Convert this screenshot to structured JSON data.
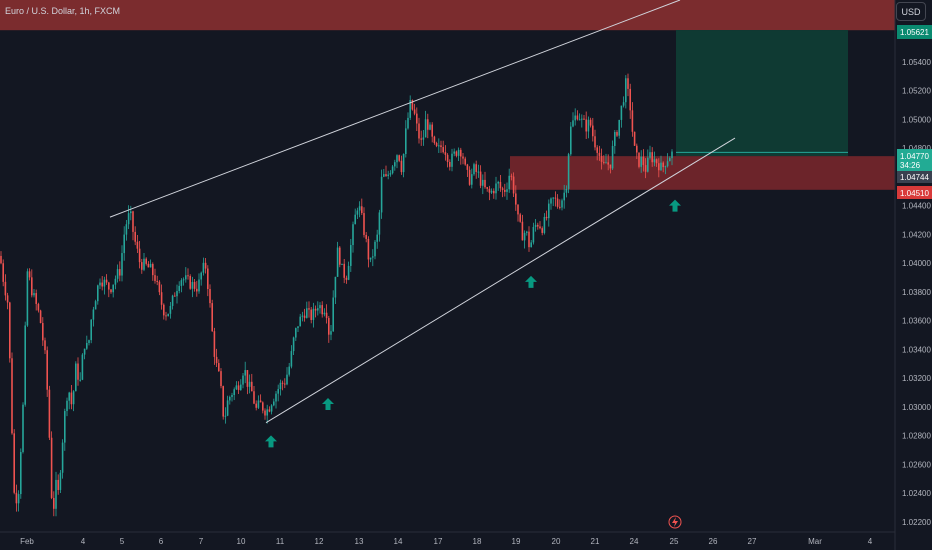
{
  "header": {
    "symbol_title": "Euro / U.S. Dollar, 1h, FXCM"
  },
  "toolbar": {
    "currency_label": "USD"
  },
  "colors": {
    "background": "#131722",
    "up": "#26a69a",
    "down": "#ef5350",
    "resistance_zone": "#7b2c2e",
    "target_zone": "#0f3a33",
    "stop_zone": "#8b2a2e",
    "trendline": "#d1d4dc",
    "arrow": "#089981"
  },
  "price_badges": {
    "target": "1.05621",
    "last": "1.04770",
    "countdown": "34:26",
    "entry": "1.04744",
    "stop": "1.04510"
  },
  "chart_data": {
    "type": "candlestick",
    "title": "Euro / U.S. Dollar, 1h, FXCM",
    "y_ticks": [
      "1.05400",
      "1.05200",
      "1.05000",
      "1.04800",
      "1.04600",
      "1.04400",
      "1.04200",
      "1.04000",
      "1.03800",
      "1.03600",
      "1.03400",
      "1.03200",
      "1.03000",
      "1.02800",
      "1.02600",
      "1.02400",
      "1.02200"
    ],
    "x_ticks": [
      "Feb",
      "4",
      "5",
      "6",
      "7",
      "10",
      "11",
      "12",
      "13",
      "14",
      "17",
      "18",
      "19",
      "20",
      "21",
      "24",
      "25",
      "26",
      "27",
      "Mar",
      "4"
    ],
    "ylim": [
      1.0213,
      1.0583
    ],
    "series_close": [
      [
        0,
        1.0405
      ],
      [
        3,
        1.039
      ],
      [
        8,
        1.0372
      ],
      [
        14,
        1.024
      ],
      [
        18,
        1.0235
      ],
      [
        23,
        1.03
      ],
      [
        27,
        1.0395
      ],
      [
        33,
        1.0378
      ],
      [
        40,
        1.0362
      ],
      [
        46,
        1.033
      ],
      [
        50,
        1.027
      ],
      [
        53,
        1.0212
      ],
      [
        55,
        1.026
      ],
      [
        57,
        1.023
      ],
      [
        60,
        1.0255
      ],
      [
        64,
        1.029
      ],
      [
        68,
        1.0315
      ],
      [
        72,
        1.03
      ],
      [
        76,
        1.0328
      ],
      [
        80,
        1.0316
      ],
      [
        84,
        1.0345
      ],
      [
        88,
        1.034
      ],
      [
        92,
        1.0366
      ],
      [
        96,
        1.0378
      ],
      [
        100,
        1.039
      ],
      [
        106,
        1.0385
      ],
      [
        110,
        1.0382
      ],
      [
        114,
        1.0388
      ],
      [
        120,
        1.0395
      ],
      [
        125,
        1.0425
      ],
      [
        130,
        1.0435
      ],
      [
        134,
        1.0418
      ],
      [
        140,
        1.04
      ],
      [
        146,
        1.0398
      ],
      [
        150,
        1.0396
      ],
      [
        155,
        1.039
      ],
      [
        160,
        1.0375
      ],
      [
        165,
        1.0365
      ],
      [
        170,
        1.0367
      ],
      [
        175,
        1.038
      ],
      [
        180,
        1.039
      ],
      [
        186,
        1.0388
      ],
      [
        192,
        1.0385
      ],
      [
        198,
        1.0383
      ],
      [
        202,
        1.0395
      ],
      [
        206,
        1.0398
      ],
      [
        210,
        1.037
      ],
      [
        213,
        1.0345
      ],
      [
        216,
        1.033
      ],
      [
        220,
        1.0318
      ],
      [
        224,
        1.029
      ],
      [
        228,
        1.0305
      ],
      [
        232,
        1.031
      ],
      [
        236,
        1.0313
      ],
      [
        240,
        1.0318
      ],
      [
        244,
        1.0328
      ],
      [
        248,
        1.0315
      ],
      [
        252,
        1.031
      ],
      [
        256,
        1.0298
      ],
      [
        260,
        1.0302
      ],
      [
        265,
        1.0298
      ],
      [
        268,
        1.0298
      ],
      [
        272,
        1.0305
      ],
      [
        276,
        1.031
      ],
      [
        280,
        1.0315
      ],
      [
        285,
        1.0318
      ],
      [
        290,
        1.033
      ],
      [
        294,
        1.0348
      ],
      [
        298,
        1.0358
      ],
      [
        302,
        1.0363
      ],
      [
        306,
        1.0368
      ],
      [
        310,
        1.0362
      ],
      [
        314,
        1.0365
      ],
      [
        318,
        1.0372
      ],
      [
        322,
        1.0368
      ],
      [
        326,
        1.037
      ],
      [
        330,
        1.0345
      ],
      [
        334,
        1.0385
      ],
      [
        338,
        1.041
      ],
      [
        342,
        1.0395
      ],
      [
        346,
        1.039
      ],
      [
        350,
        1.0408
      ],
      [
        354,
        1.0428
      ],
      [
        358,
        1.0442
      ],
      [
        362,
        1.043
      ],
      [
        366,
        1.0415
      ],
      [
        370,
        1.0398
      ],
      [
        374,
        1.041
      ],
      [
        378,
        1.042
      ],
      [
        382,
        1.0462
      ],
      [
        386,
        1.0458
      ],
      [
        390,
        1.0465
      ],
      [
        394,
        1.0472
      ],
      [
        398,
        1.0478
      ],
      [
        402,
        1.0465
      ],
      [
        406,
        1.0492
      ],
      [
        410,
        1.051
      ],
      [
        414,
        1.0505
      ],
      [
        418,
        1.049
      ],
      [
        422,
        1.0482
      ],
      [
        426,
        1.05
      ],
      [
        430,
        1.0492
      ],
      [
        434,
        1.048
      ],
      [
        438,
        1.0478
      ],
      [
        442,
        1.0482
      ],
      [
        446,
        1.0478
      ],
      [
        450,
        1.047
      ],
      [
        454,
        1.0475
      ],
      [
        458,
        1.048
      ],
      [
        462,
        1.0478
      ],
      [
        466,
        1.0462
      ],
      [
        470,
        1.0458
      ],
      [
        474,
        1.0465
      ],
      [
        478,
        1.0462
      ],
      [
        482,
        1.0455
      ],
      [
        486,
        1.045
      ],
      [
        490,
        1.0448
      ],
      [
        494,
        1.0452
      ],
      [
        498,
        1.0455
      ],
      [
        502,
        1.045
      ],
      [
        506,
        1.0452
      ],
      [
        510,
        1.0464
      ],
      [
        514,
        1.045
      ],
      [
        518,
        1.043
      ],
      [
        522,
        1.042
      ],
      [
        526,
        1.0422
      ],
      [
        530,
        1.041
      ],
      [
        534,
        1.0425
      ],
      [
        538,
        1.0428
      ],
      [
        542,
        1.0425
      ],
      [
        546,
        1.043
      ],
      [
        550,
        1.044
      ],
      [
        554,
        1.0445
      ],
      [
        558,
        1.044
      ],
      [
        562,
        1.0445
      ],
      [
        566,
        1.0452
      ],
      [
        570,
        1.0492
      ],
      [
        574,
        1.05
      ],
      [
        578,
        1.0505
      ],
      [
        582,
        1.0498
      ],
      [
        586,
        1.0495
      ],
      [
        590,
        1.0498
      ],
      [
        594,
        1.0485
      ],
      [
        598,
        1.048
      ],
      [
        602,
        1.0465
      ],
      [
        606,
        1.047
      ],
      [
        610,
        1.0468
      ],
      [
        614,
        1.0485
      ],
      [
        618,
        1.0495
      ],
      [
        622,
        1.051
      ],
      [
        626,
        1.0525
      ],
      [
        630,
        1.051
      ],
      [
        634,
        1.048
      ],
      [
        638,
        1.047
      ],
      [
        642,
        1.0472
      ],
      [
        646,
        1.0465
      ],
      [
        650,
        1.0475
      ],
      [
        654,
        1.0472
      ],
      [
        658,
        1.047
      ],
      [
        662,
        1.0465
      ],
      [
        666,
        1.0472
      ],
      [
        670,
        1.0475
      ],
      [
        674,
        1.0477
      ]
    ],
    "annotations": {
      "resistance_zone": {
        "y0": 1.0562,
        "y1": 1.0583
      },
      "target_zone": {
        "y0": 1.04744,
        "y1": 1.05621
      },
      "stop_zone": {
        "y0": 1.0451,
        "y1": 1.04744
      },
      "upper_trendline": [
        [
          110,
          1.0432
        ],
        [
          680,
          1.0583
        ]
      ],
      "lower_trendline": [
        [
          266,
          1.0289
        ],
        [
          735,
          1.0487
        ]
      ],
      "arrows": [
        [
          271,
          1.0276
        ],
        [
          328,
          1.0302
        ],
        [
          531,
          1.0387
        ],
        [
          675,
          1.044
        ]
      ]
    }
  }
}
